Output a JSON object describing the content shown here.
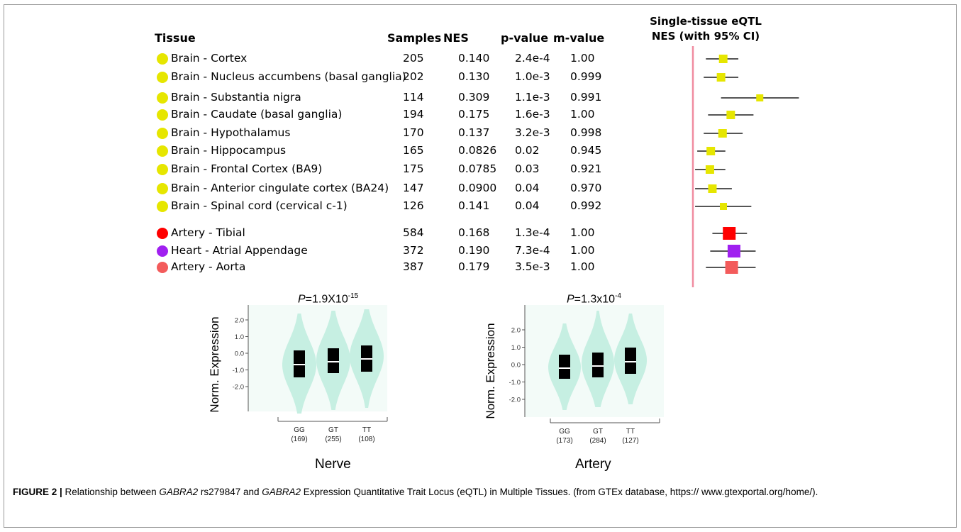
{
  "table": {
    "headers": {
      "tissue": "Tissue",
      "samples": "Samples",
      "nes": "NES",
      "pvalue": "p-value",
      "mvalue": "m-value"
    },
    "forest_title_line1": "Single-tissue eQTL",
    "forest_title_line2": "NES (with 95% CI)",
    "rows": [
      {
        "tissue": "Brain - Cortex",
        "samples": "205",
        "nes": "0.140",
        "pvalue": "2.4e-4",
        "mvalue": "1.00",
        "color": "#e6e600",
        "ci_low": 0.06,
        "ci_high": 0.21
      },
      {
        "tissue": "Brain - Nucleus accumbens (basal ganglia)",
        "samples": "202",
        "nes": "0.130",
        "pvalue": "1.0e-3",
        "mvalue": "0.999",
        "color": "#e6e600",
        "ci_low": 0.05,
        "ci_high": 0.21
      },
      {
        "tissue": "Brain - Substantia nigra",
        "samples": "114",
        "nes": "0.309",
        "pvalue": "1.1e-3",
        "mvalue": "0.991",
        "color": "#e6e600",
        "ci_low": 0.13,
        "ci_high": 0.49
      },
      {
        "tissue": "Brain - Caudate (basal ganglia)",
        "samples": "194",
        "nes": "0.175",
        "pvalue": "1.6e-3",
        "mvalue": "1.00",
        "color": "#e6e600",
        "ci_low": 0.07,
        "ci_high": 0.28
      },
      {
        "tissue": "Brain - Hypothalamus",
        "samples": "170",
        "nes": "0.137",
        "pvalue": "3.2e-3",
        "mvalue": "0.998",
        "color": "#e6e600",
        "ci_low": 0.05,
        "ci_high": 0.23
      },
      {
        "tissue": "Brain - Hippocampus",
        "samples": "165",
        "nes": "0.0826",
        "pvalue": "0.02",
        "mvalue": "0.945",
        "color": "#e6e600",
        "ci_low": 0.02,
        "ci_high": 0.15
      },
      {
        "tissue": "Brain - Frontal Cortex (BA9)",
        "samples": "175",
        "nes": "0.0785",
        "pvalue": "0.03",
        "mvalue": "0.921",
        "color": "#e6e600",
        "ci_low": 0.01,
        "ci_high": 0.15
      },
      {
        "tissue": "Brain - Anterior cingulate cortex (BA24)",
        "samples": "147",
        "nes": "0.0900",
        "pvalue": "0.04",
        "mvalue": "0.970",
        "color": "#e6e600",
        "ci_low": 0.01,
        "ci_high": 0.18
      },
      {
        "tissue": "Brain - Spinal cord (cervical c-1)",
        "samples": "126",
        "nes": "0.141",
        "pvalue": "0.04",
        "mvalue": "0.992",
        "color": "#e6e600",
        "ci_low": 0.01,
        "ci_high": 0.27
      },
      {
        "tissue": "Artery - Tibial",
        "samples": "584",
        "nes": "0.168",
        "pvalue": "1.3e-4",
        "mvalue": "1.00",
        "color": "#ff0000",
        "ci_low": 0.09,
        "ci_high": 0.25
      },
      {
        "tissue": "Heart - Atrial Appendage",
        "samples": "372",
        "nes": "0.190",
        "pvalue": "7.3e-4",
        "mvalue": "1.00",
        "color": "#a020f0",
        "ci_low": 0.08,
        "ci_high": 0.29
      },
      {
        "tissue": "Artery - Aorta",
        "samples": "387",
        "nes": "0.179",
        "pvalue": "3.5e-3",
        "mvalue": "1.00",
        "color": "#f35b5b",
        "ci_low": 0.06,
        "ci_high": 0.29
      }
    ]
  },
  "violins": [
    {
      "p_prefix": "P",
      "p_text": "=1.9X10",
      "p_exp": "-15",
      "ylabel": "Norm. Expression",
      "yticks": [
        "2.0",
        "1.0",
        "0.0",
        "-1.0",
        "-2.0"
      ],
      "tissue": "Nerve",
      "genotypes": [
        {
          "label": "GG",
          "n": "(169)"
        },
        {
          "label": "GT",
          "n": "(255)"
        },
        {
          "label": "TT",
          "n": "(108)"
        }
      ]
    },
    {
      "p_prefix": "P",
      "p_text": "=1.3x10",
      "p_exp": "-4",
      "ylabel": "Norm. Expression",
      "yticks": [
        "2.0",
        "1.0",
        "0.0",
        "-1.0",
        "-2.0"
      ],
      "tissue": "Artery",
      "genotypes": [
        {
          "label": "GG",
          "n": "(173)"
        },
        {
          "label": "GT",
          "n": "(284)"
        },
        {
          "label": "TT",
          "n": "(127)"
        }
      ]
    }
  ],
  "caption": {
    "label": "FIGURE 2 |",
    "t1": " Relationship between ",
    "gene1": "GABRA2",
    "t2": " rs279847 and ",
    "gene2": "GABRA2",
    "t3": " Expression Quantitative Trait Locus (eQTL) in Multiple Tissues. (from GTEx database, https:// www.gtexportal.org/home/)."
  },
  "colors": {
    "violin_fill": "#c6efe2",
    "plot_bg": "#f3fbf8",
    "zero_line": "#f08ca0",
    "ci_line": "#555555"
  }
}
